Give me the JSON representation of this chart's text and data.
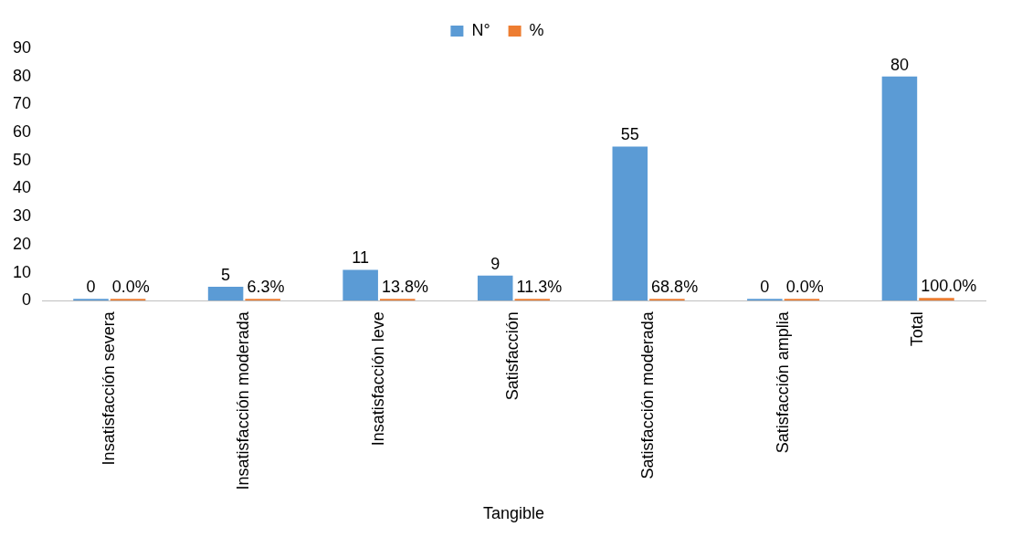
{
  "chart_data": {
    "type": "bar",
    "xlabel": "Tangible",
    "categories": [
      "Insatisfacción severa",
      "Insatisfacción moderada",
      "Insatisfacción leve",
      "Satisfacción",
      "Satisfacción moderada",
      "Satisfacción amplia",
      "Total"
    ],
    "series": [
      {
        "name": "N°",
        "color": "#5b9bd5",
        "values": [
          0,
          5,
          11,
          9,
          55,
          0,
          80
        ]
      },
      {
        "name": "%",
        "color": "#ed7d31",
        "values": [
          0,
          0.063,
          0.138,
          0.113,
          0.688,
          0,
          1
        ],
        "value_labels": [
          "0.0%",
          "6.3%",
          "13.8%",
          "11.3%",
          "68.8%",
          "0.0%",
          "100.0%"
        ]
      }
    ],
    "ylim": [
      0,
      90
    ],
    "yticks": [
      0,
      10,
      20,
      30,
      40,
      50,
      60,
      70,
      80,
      90
    ],
    "grid": false,
    "legend": "top",
    "data_labels": true
  }
}
